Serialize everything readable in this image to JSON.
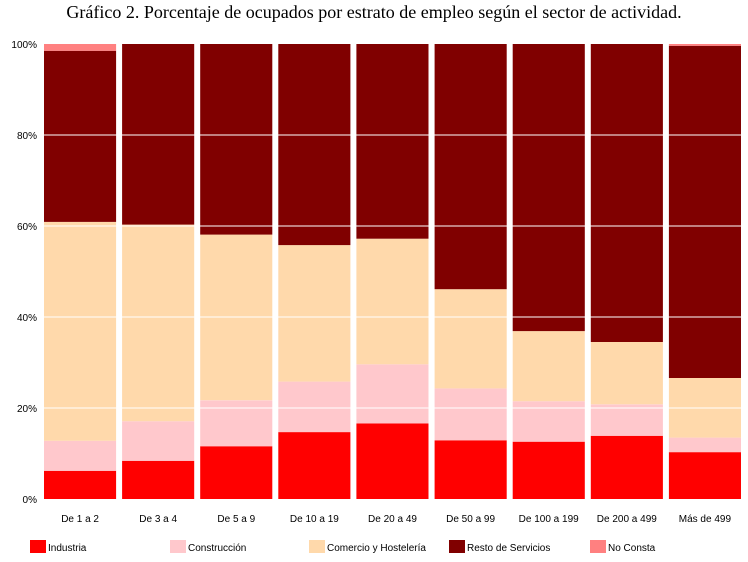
{
  "chart_data": {
    "type": "bar",
    "stacked": true,
    "title": "Gráfico 2. Porcentaje de ocupados por estrato de empleo según el sector de actividad.",
    "xlabel": "",
    "ylabel": "",
    "ylim": [
      0,
      100
    ],
    "yticks": [
      "0%",
      "20%",
      "40%",
      "60%",
      "80%",
      "100%"
    ],
    "grid": true,
    "legend_position": "bottom",
    "categories": [
      "De 1 a 2",
      "De 3 a 4",
      "De 5 a 9",
      "De 10 a 19",
      "De 20 a 49",
      "De 50 a 99",
      "De 100 a 199",
      "De 200 a 499",
      "Más de 499"
    ],
    "series": [
      {
        "name": "Industria",
        "color": "#ff0000",
        "values": [
          6.2,
          8.4,
          11.6,
          14.7,
          16.6,
          12.9,
          12.6,
          13.9,
          10.3
        ]
      },
      {
        "name": "Construcción",
        "color": "#ffc8cc",
        "values": [
          6.6,
          8.7,
          10.1,
          11.1,
          13.0,
          11.4,
          8.9,
          6.9,
          3.2
        ]
      },
      {
        "name": "Comercio y Hostelería",
        "color": "#ffd9ab",
        "values": [
          48.1,
          43.2,
          36.4,
          30.0,
          27.6,
          21.8,
          15.4,
          13.7,
          13.1
        ]
      },
      {
        "name": "Resto de Servicios",
        "color": "#800000",
        "values": [
          37.6,
          39.7,
          41.9,
          44.2,
          42.8,
          53.9,
          63.1,
          65.5,
          73.0
        ]
      },
      {
        "name": "No Consta",
        "color": "#ff8080",
        "values": [
          1.5,
          0.0,
          0.0,
          0.0,
          0.0,
          0.0,
          0.0,
          0.0,
          0.4
        ]
      }
    ]
  }
}
